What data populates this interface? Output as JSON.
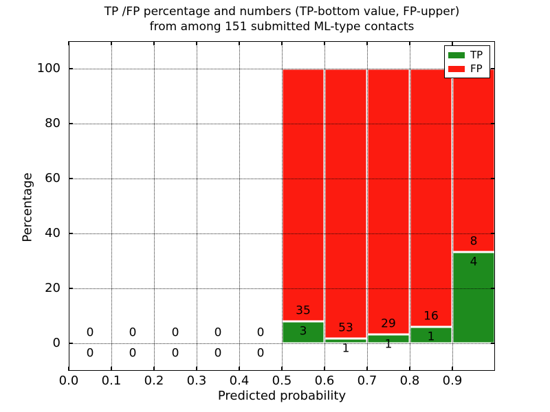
{
  "chart_data": {
    "type": "bar",
    "stacked": true,
    "normalized_to_percent": true,
    "title_line1": "TP /FP percentage and numbers (TP-bottom value, FP-upper)",
    "title_line2": "from among 151 submitted ML-type contacts",
    "xlabel": "Predicted probability",
    "ylabel": "Percentage",
    "xlim": [
      0.0,
      1.0
    ],
    "ylim": [
      -10,
      110
    ],
    "x_tick_values": [
      0.0,
      0.1,
      0.2,
      0.3,
      0.4,
      0.5,
      0.6,
      0.7,
      0.8,
      0.9
    ],
    "x_tick_labels": [
      "0.0",
      "0.1",
      "0.2",
      "0.3",
      "0.4",
      "0.5",
      "0.6",
      "0.7",
      "0.8",
      "0.9"
    ],
    "y_tick_values": [
      0,
      20,
      40,
      60,
      80,
      100
    ],
    "y_tick_labels": [
      "0",
      "20",
      "40",
      "60",
      "80",
      "100"
    ],
    "grid": "dotted",
    "bin_width": 0.1,
    "categories": [
      "0.0-0.1",
      "0.1-0.2",
      "0.2-0.3",
      "0.3-0.4",
      "0.4-0.5",
      "0.5-0.6",
      "0.6-0.7",
      "0.7-0.8",
      "0.8-0.9",
      "0.9-1.0"
    ],
    "series": [
      {
        "name": "TP",
        "color": "#1e8b1e",
        "counts": [
          0,
          0,
          0,
          0,
          0,
          3,
          1,
          1,
          1,
          4
        ]
      },
      {
        "name": "FP",
        "color": "#fc1b10",
        "counts": [
          0,
          0,
          0,
          0,
          0,
          35,
          53,
          29,
          16,
          8
        ]
      }
    ],
    "legend": {
      "position": "upper right",
      "entries": [
        {
          "label": "TP",
          "color": "#1e8b1e"
        },
        {
          "label": "FP",
          "color": "#fc1b10"
        }
      ]
    },
    "annotation_rule": "per bin: FP count printed just above TP/FP boundary, TP count just below"
  }
}
